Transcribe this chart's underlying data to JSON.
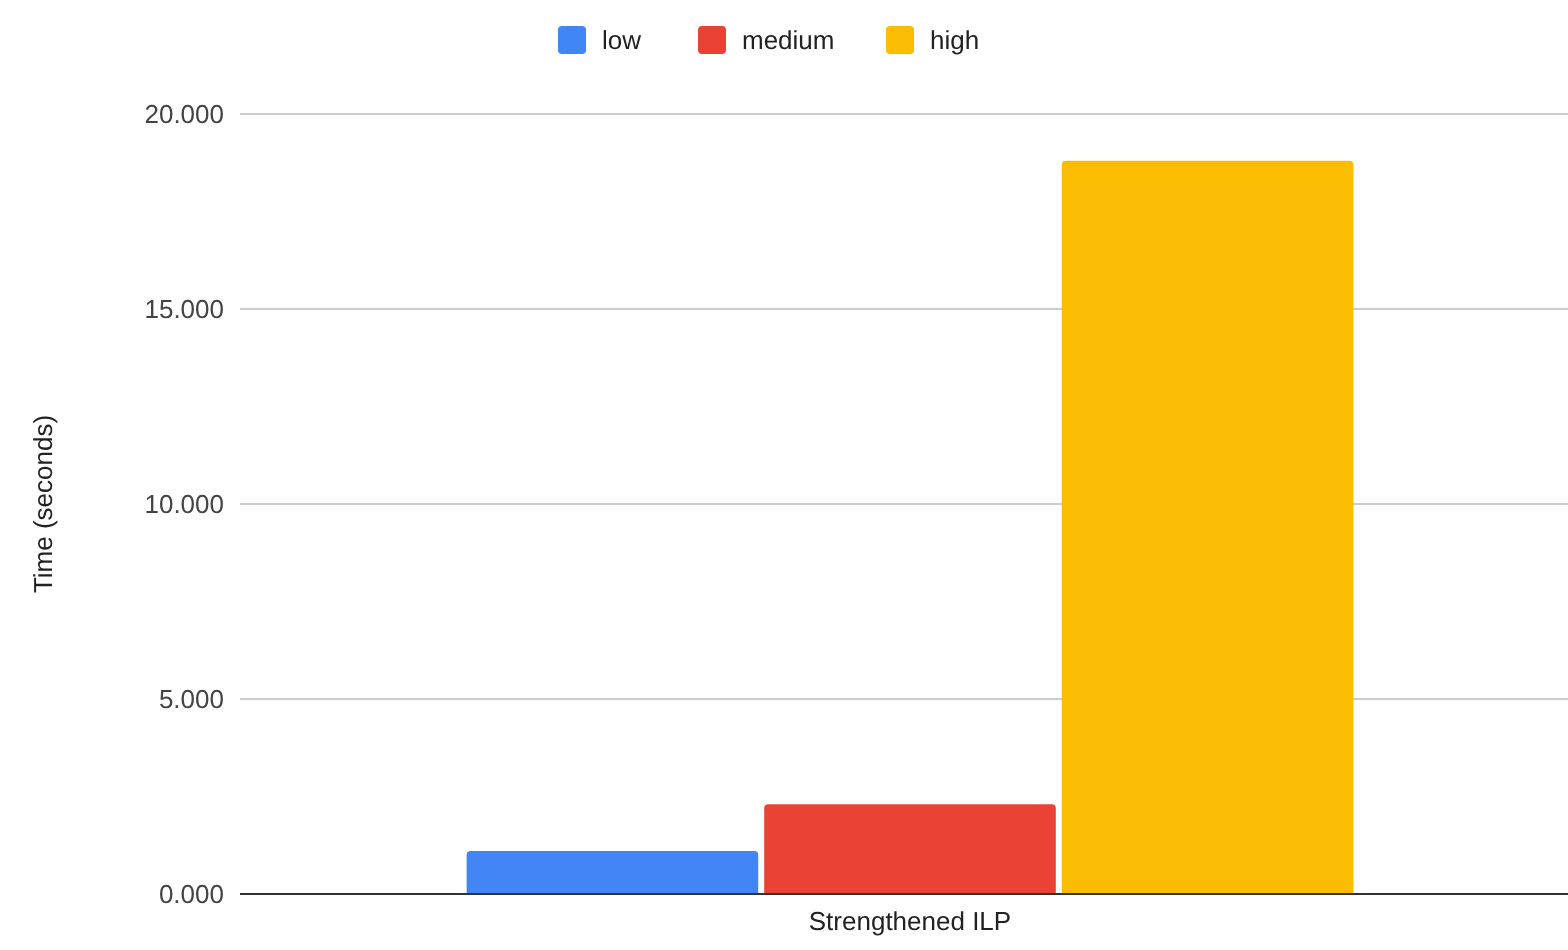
{
  "chart_data": {
    "type": "bar",
    "categories": [
      "Strengthened ILP"
    ],
    "ylabel": "Time (seconds)",
    "series": [
      {
        "name": "low",
        "color": "#4285f4",
        "values": [
          1.1
        ]
      },
      {
        "name": "medium",
        "color": "#ea4335",
        "values": [
          2.3
        ]
      },
      {
        "name": "high",
        "color": "#fbbc04",
        "values": [
          18.8
        ]
      }
    ],
    "ylim": [
      0,
      20
    ],
    "yticks": [
      {
        "value": 0,
        "label": "0.000"
      },
      {
        "value": 5,
        "label": "5.000"
      },
      {
        "value": 10,
        "label": "10.000"
      },
      {
        "value": 15,
        "label": "15.000"
      },
      {
        "value": 20,
        "label": "20.000"
      }
    ],
    "grid": "y",
    "legend": "top"
  }
}
